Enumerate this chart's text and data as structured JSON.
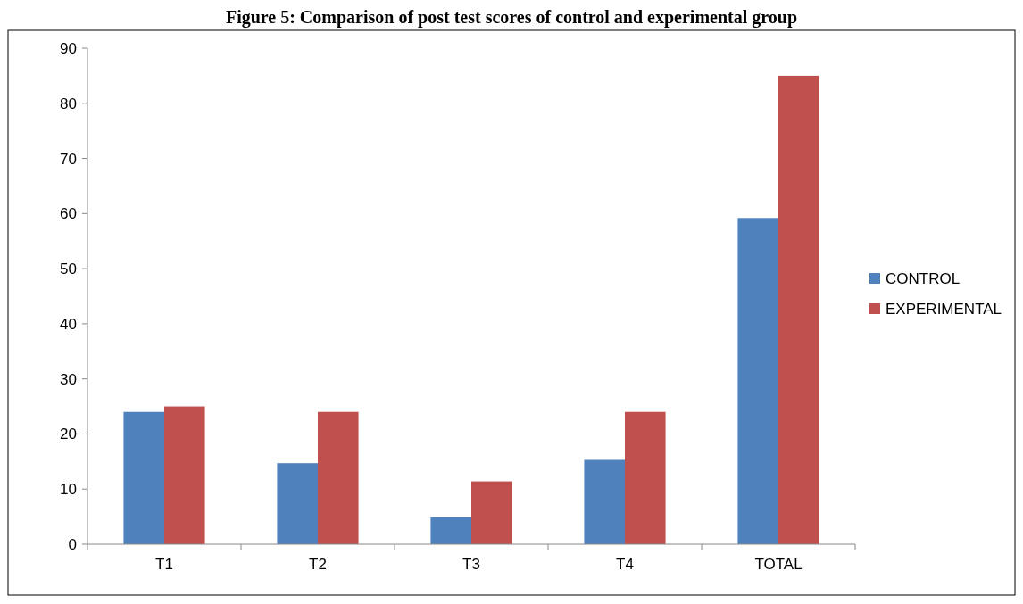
{
  "chart_data": {
    "type": "bar",
    "title": "Figure 5: Comparison of post test scores of control and experimental group",
    "categories": [
      "T1",
      "T2",
      "T3",
      "T4",
      "TOTAL"
    ],
    "series": [
      {
        "name": "CONTROL",
        "color": "#4f81bd",
        "values": [
          24,
          14.7,
          4.9,
          15.3,
          59.2
        ]
      },
      {
        "name": "EXPERIMENTAL",
        "color": "#c0504d",
        "values": [
          25,
          24,
          11.4,
          24,
          85
        ]
      }
    ],
    "ylim": [
      0,
      90
    ],
    "yticks": [
      0,
      10,
      20,
      30,
      40,
      50,
      60,
      70,
      80,
      90
    ],
    "grid": false,
    "legend": "right"
  }
}
